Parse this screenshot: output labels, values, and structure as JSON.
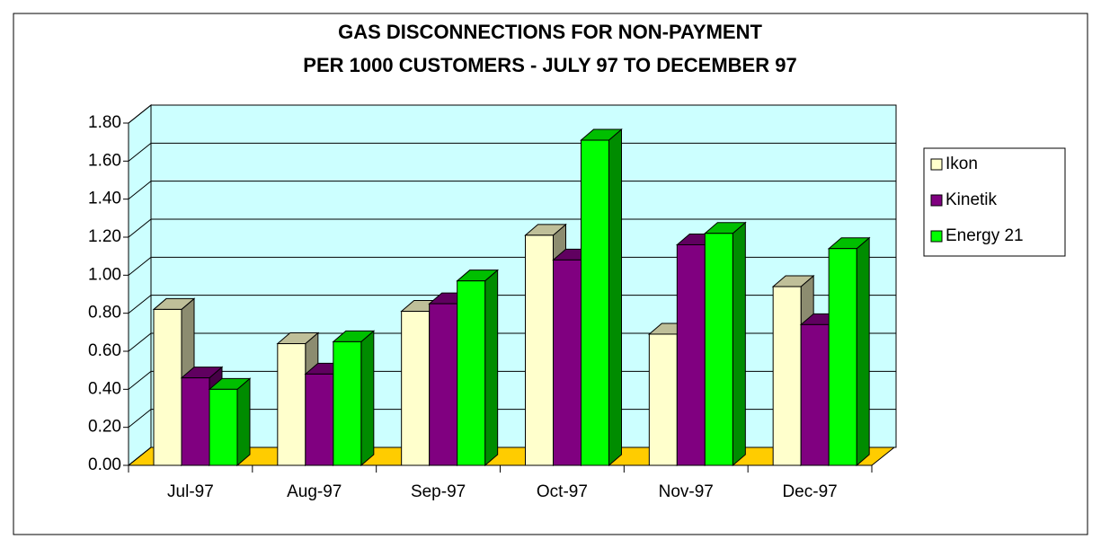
{
  "chart_data": {
    "type": "bar3d",
    "title": "GAS DISCONNECTIONS FOR NON-PAYMENT",
    "subtitle": "PER 1000 CUSTOMERS - JULY 97 TO DECEMBER 97",
    "categories": [
      "Jul-97",
      "Aug-97",
      "Sep-97",
      "Oct-97",
      "Nov-97",
      "Dec-97"
    ],
    "series": [
      {
        "name": "Ikon",
        "color": "#ffffcc",
        "values": [
          0.82,
          0.64,
          0.81,
          1.21,
          0.69,
          0.94
        ]
      },
      {
        "name": "Kinetik",
        "color": "#800080",
        "values": [
          0.46,
          0.48,
          0.85,
          1.08,
          1.16,
          0.74
        ]
      },
      {
        "name": "Energy 21",
        "color": "#00ff00",
        "values": [
          0.4,
          0.65,
          0.97,
          1.71,
          1.22,
          1.14
        ]
      }
    ],
    "ylim": [
      0,
      1.8
    ],
    "yticks": [
      {
        "value": 0,
        "label": "0.00"
      },
      {
        "value": 0.2,
        "label": "0.20"
      },
      {
        "value": 0.4,
        "label": "0.40"
      },
      {
        "value": 0.6,
        "label": "0.60"
      },
      {
        "value": 0.8,
        "label": "0.80"
      },
      {
        "value": 1.0,
        "label": "1.00"
      },
      {
        "value": 1.2,
        "label": "1.20"
      },
      {
        "value": 1.4,
        "label": "1.40"
      },
      {
        "value": 1.6,
        "label": "1.60"
      },
      {
        "value": 1.8,
        "label": "1.80"
      }
    ],
    "grid": true,
    "legend": "right"
  }
}
